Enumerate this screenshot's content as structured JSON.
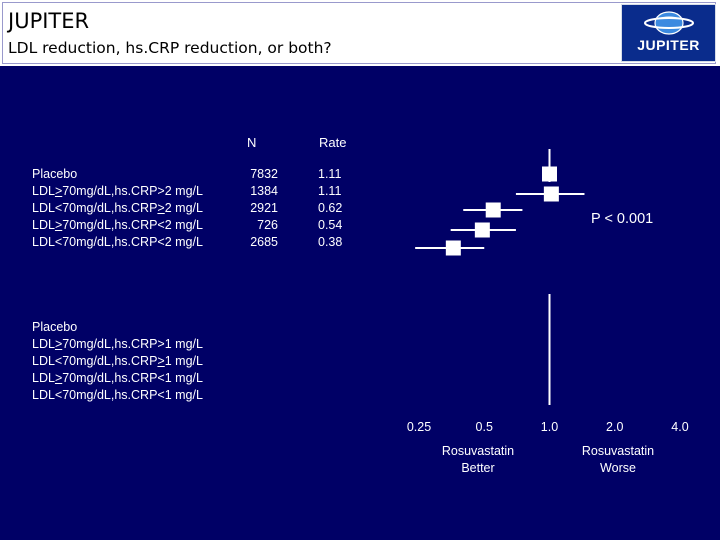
{
  "header": {
    "title": "JUPITER",
    "subtitle": "LDL reduction, hs.CRP reduction, or both?",
    "logo_text": "JUPITER",
    "logo_icon": "globe-logo-icon"
  },
  "columns": {
    "n_label": "N",
    "rate_label": "Rate"
  },
  "group1": {
    "rows": [
      {
        "pre": "Placebo",
        "op": "",
        "post": "",
        "n": "7832",
        "rate": "1.11"
      },
      {
        "pre": "LDL",
        "op": ">",
        "post": "70mg/dL,hs.CRP>2 mg/L",
        "n": "1384",
        "rate": "1.11"
      },
      {
        "pre": "LDL<70mg/dL,hs.CRP",
        "op": ">",
        "post": "2 mg/L",
        "n": "2921",
        "rate": "0.62"
      },
      {
        "pre": "LDL",
        "op": ">",
        "post": "70mg/dL,hs.CRP<2 mg/L",
        "n": "726",
        "rate": "0.54"
      },
      {
        "pre": "LDL<70mg/dL,hs.CRP<2 mg/L",
        "op": "",
        "post": "",
        "n": "2685",
        "rate": "0.38"
      }
    ]
  },
  "group2": {
    "rows": [
      {
        "pre": "Placebo",
        "op": "",
        "post": ""
      },
      {
        "pre": "LDL",
        "op": ">",
        "post": "70mg/dL,hs.CRP>1 mg/L"
      },
      {
        "pre": "LDL<70mg/dL,hs.CRP",
        "op": ">",
        "post": "1 mg/L"
      },
      {
        "pre": "LDL",
        "op": ">",
        "post": "70mg/dL,hs.CRP<1 mg/L"
      },
      {
        "pre": "LDL<70mg/dL,hs.CRP<1 mg/L",
        "op": "",
        "post": ""
      }
    ]
  },
  "p_value": "P < 0.001",
  "axis": {
    "ticks": [
      "0.25",
      "0.5",
      "1.0",
      "2.0",
      "4.0"
    ],
    "left_label_1": "Rosuvastatin",
    "left_label_2": "Better",
    "right_label_1": "Rosuvastatin",
    "right_label_2": "Worse"
  },
  "chart_data": {
    "type": "forest",
    "scale": "log2",
    "xlim": [
      0.25,
      4.0
    ],
    "ticks": [
      0.25,
      0.5,
      1.0,
      2.0,
      4.0
    ],
    "reference_line": 1.0,
    "series": [
      {
        "label": "Placebo",
        "hr": 1.0,
        "ci": [
          1.0,
          1.0
        ]
      },
      {
        "label": "LDL>70mg/dL,hs.CRP>2 mg/L",
        "hr": 1.02,
        "ci": [
          0.7,
          1.45
        ]
      },
      {
        "label": "LDL<70mg/dL,hs.CRP>2 mg/L",
        "hr": 0.55,
        "ci": [
          0.4,
          0.75
        ]
      },
      {
        "label": "LDL>70mg/dL,hs.CRP<2 mg/L",
        "hr": 0.49,
        "ci": [
          0.35,
          0.7
        ]
      },
      {
        "label": "LDL<70mg/dL,hs.CRP<2 mg/L",
        "hr": 0.36,
        "ci": [
          0.24,
          0.5
        ]
      }
    ],
    "colors": {
      "background": "#000066",
      "marks": "#ffffff"
    }
  }
}
